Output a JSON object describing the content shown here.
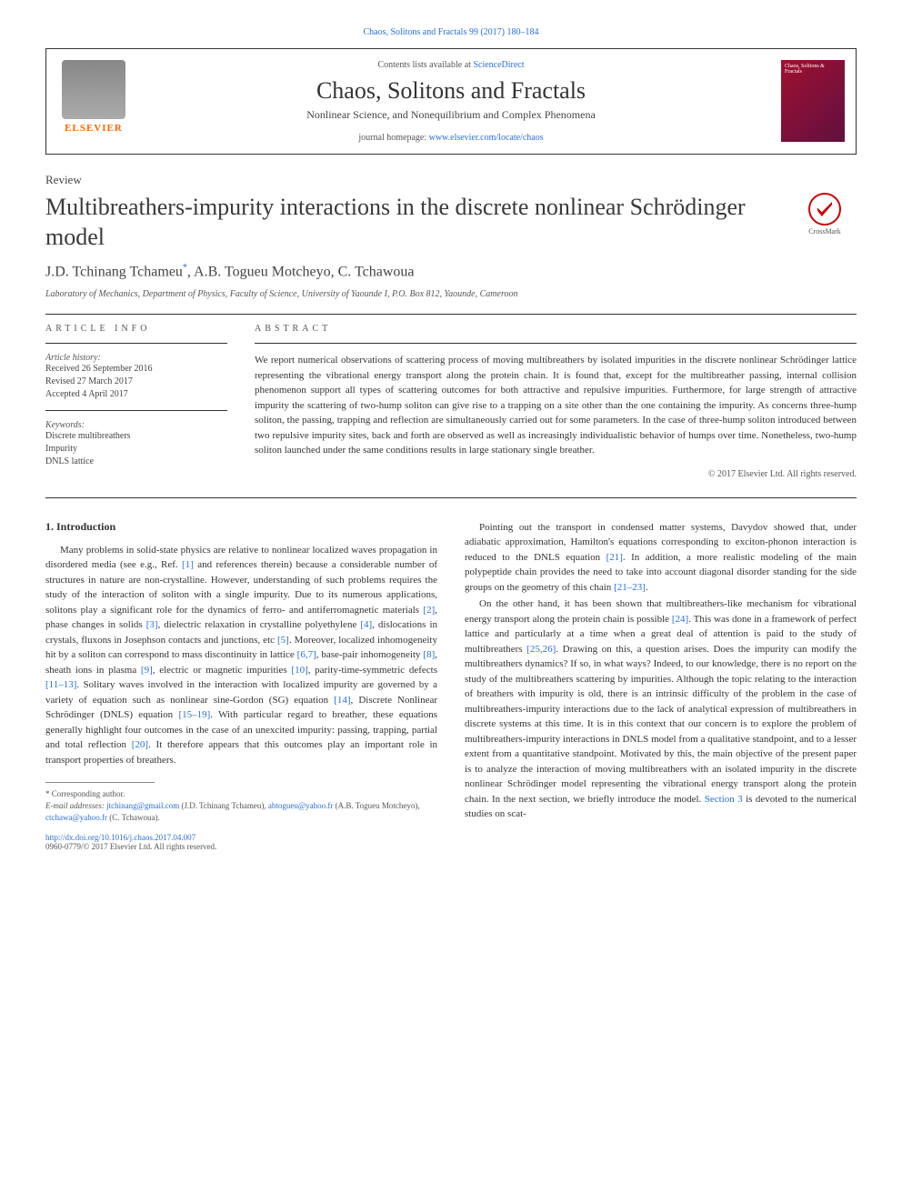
{
  "header": {
    "top_citation": "Chaos, Solitons and Fractals 99 (2017) 180–184",
    "contents_prefix": "Contents lists available at ",
    "contents_link": "ScienceDirect",
    "journal_name": "Chaos, Solitons and Fractals",
    "journal_subtitle": "Nonlinear Science, and Nonequilibrium and Complex Phenomena",
    "homepage_prefix": "journal homepage: ",
    "homepage_link": "www.elsevier.com/locate/chaos",
    "publisher_name": "ELSEVIER",
    "cover_text": "Chaos, Solitons & Fractals",
    "crossmark_label": "CrossMark"
  },
  "article": {
    "type": "Review",
    "title": "Multibreathers-impurity interactions in the discrete nonlinear Schrödinger model",
    "authors": "J.D. Tchinang Tchameu",
    "author_marker": "*",
    "authors_rest": ", A.B. Togueu Motcheyo, C. Tchawoua",
    "affiliation": "Laboratory of Mechanics, Department of Physics, Faculty of Science, University of Yaounde I, P.O. Box 812, Yaounde, Cameroon"
  },
  "info": {
    "heading": "ARTICLE INFO",
    "history_label": "Article history:",
    "received": "Received 26 September 2016",
    "revised": "Revised 27 March 2017",
    "accepted": "Accepted 4 April 2017",
    "keywords_label": "Keywords:",
    "kw1": "Discrete multibreathers",
    "kw2": "Impurity",
    "kw3": "DNLS lattice"
  },
  "abstract": {
    "heading": "ABSTRACT",
    "text": "We report numerical observations of scattering process of moving multibreathers by isolated impurities in the discrete nonlinear Schrödinger lattice representing the vibrational energy transport along the protein chain. It is found that, except for the multibreather passing, internal collision phenomenon support all types of scattering outcomes for both attractive and repulsive impurities. Furthermore, for large strength of attractive impurity the scattering of two-hump soliton can give rise to a trapping on a site other than the one containing the impurity. As concerns three-hump soliton, the passing, trapping and reflection are simultaneously carried out for some parameters. In the case of three-hump soliton introduced between two repulsive impurity sites, back and forth are observed as well as increasingly individualistic behavior of humps over time. Nonetheless, two-hump soliton launched under the same conditions results in large stationary single breather.",
    "copyright": "© 2017 Elsevier Ltd. All rights reserved."
  },
  "body": {
    "section1_heading": "1. Introduction",
    "col1_p1a": "Many problems in solid-state physics are relative to nonlinear localized waves propagation in disordered media (see e.g., Ref. ",
    "col1_ref1": "[1]",
    "col1_p1b": " and references therein) because a considerable number of structures in nature are non-crystalline. However, understanding of such problems requires the study of the interaction of soliton with a single impurity. Due to its numerous applications, solitons play a significant role for the dynamics of ferro- and antiferromagnetic materials ",
    "col1_ref2": "[2]",
    "col1_p1c": ", phase changes in solids ",
    "col1_ref3": "[3]",
    "col1_p1d": ", dielectric relaxation in crystalline polyethylene ",
    "col1_ref4": "[4]",
    "col1_p1e": ", dislocations in crystals, fluxons in Josephson contacts and junctions, etc ",
    "col1_ref5": "[5]",
    "col1_p1f": ". Moreover, localized inhomogeneity hit by a soliton can correspond to mass discontinuity in lattice ",
    "col1_ref67": "[6,7]",
    "col1_p1g": ", base-pair inhomogeneity ",
    "col1_ref8": "[8]",
    "col1_p1h": ", sheath ions in plasma ",
    "col1_ref9": "[9]",
    "col1_p1i": ", electric or magnetic impurities ",
    "col1_ref10": "[10]",
    "col1_p1j": ", parity-time-symmetric defects ",
    "col1_ref1113": "[11–13]",
    "col1_p1k": ". Solitary waves involved in the interaction with localized impurity are governed by a variety of equation such as nonlinear sine-Gordon (SG) equation ",
    "col1_ref14": "[14]",
    "col1_p1l": ", Discrete Nonlinear Schrödinger (DNLS) equation ",
    "col1_ref1519": "[15–19]",
    "col1_p1m": ". With particular regard to breather, these equations generally highlight four outcomes in the case of an unexcited impurity: passing, trapping, partial and total reflection ",
    "col1_ref20": "[20]",
    "col1_p1n": ". It therefore appears that this outcomes play an important role in transport properties of breathers.",
    "col2_p1a": "Pointing out the transport in condensed matter systems, Davydov showed that, under adiabatic approximation, Hamilton's equations corresponding to exciton-phonon interaction is reduced to the DNLS equation ",
    "col2_ref21": "[21]",
    "col2_p1b": ". In addition, a more realistic modeling of the main polypeptide chain provides the need to take into account diagonal disorder standing for the side groups on the geometry of this chain ",
    "col2_ref2123": "[21–23]",
    "col2_p1c": ".",
    "col2_p2a": "On the other hand, it has been shown that multibreathers-like mechanism for vibrational energy transport along the protein chain is possible ",
    "col2_ref24": "[24]",
    "col2_p2b": ". This was done in a framework of perfect lattice and particularly at a time when a great deal of attention is paid to the study of multibreathers ",
    "col2_ref2526": "[25,26]",
    "col2_p2c": ". Drawing on this, a question arises. Does the impurity can modify the multibreathers dynamics? If so, in what ways? Indeed, to our knowledge, there is no report on the study of the multibreathers scattering by impurities. Although the topic relating to the interaction of breathers with impurity is old, there is an intrinsic difficulty of the problem in the case of multibreathers-impurity interactions due to the lack of analytical expression of multibreathers in discrete systems at this time. It is in this context that our concern is to explore the problem of multibreathers-impurity interactions in DNLS model from a qualitative standpoint, and to a lesser extent from a quantitative standpoint. Motivated by this, the main objective of the present paper is to analyze the interaction of moving multibreathers with an isolated impurity in the discrete nonlinear Schrödinger model representing the vibrational energy transport along the protein chain. In the next section, we briefly introduce the model. ",
    "col2_sec3": "Section 3",
    "col2_p2d": " is devoted to the numerical studies on scat-"
  },
  "footnote": {
    "corr_label": "* Corresponding author.",
    "email_label": "E-mail addresses: ",
    "email1": "jtchinang@gmail.com",
    "name1": " (J.D. Tchinang Tchameu), ",
    "email2": "abtogueu@yahoo.fr",
    "name2": " (A.B. Togueu Motcheyo), ",
    "email3": "ctchawa@yahoo.fr",
    "name3": " (C. Tchawoua).",
    "doi": "http://dx.doi.org/10.1016/j.chaos.2017.04.007",
    "issn": "0960-0779/© 2017 Elsevier Ltd. All rights reserved."
  },
  "colors": {
    "link": "#2970d6",
    "publisher": "#ff6600",
    "cover_bg": "#a01030",
    "text": "#333333"
  }
}
